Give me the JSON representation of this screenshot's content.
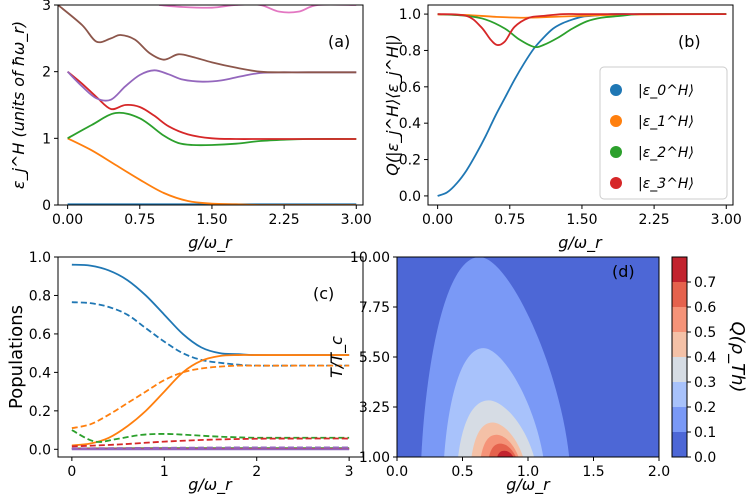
{
  "chart_data": [
    {
      "panel": "a",
      "type": "line",
      "tag": "(a)",
      "xlabel": "g/ω_r",
      "ylabel": "ε_j^H (units of ħω_r)",
      "xlim": [
        -0.1,
        3.07
      ],
      "ylim": [
        0,
        3
      ],
      "xticks": [
        "0.00",
        "0.75",
        "1.50",
        "2.25",
        "3.00"
      ],
      "xtick_values": [
        0,
        0.75,
        1.5,
        2.25,
        3.0
      ],
      "yticks": [
        "0",
        "1",
        "2",
        "3"
      ],
      "ytick_values": [
        0,
        1,
        2,
        3
      ],
      "series": [
        {
          "name": "blue",
          "color": "#1f77b4",
          "x": [
            0,
            3
          ],
          "y": [
            0.01,
            0.01
          ]
        },
        {
          "name": "orange",
          "color": "#ff7f0e",
          "x": [
            0,
            0.25,
            0.5,
            0.75,
            1.0,
            1.25,
            1.5,
            1.75,
            2.0,
            2.5,
            3.0
          ],
          "y": [
            1.0,
            0.82,
            0.6,
            0.38,
            0.18,
            0.06,
            0.02,
            0.01,
            0.0,
            0.0,
            0.0
          ]
        },
        {
          "name": "green",
          "color": "#2ca02c",
          "x": [
            0,
            0.25,
            0.5,
            0.75,
            1.0,
            1.15,
            1.3,
            1.5,
            1.75,
            2.0,
            2.25,
            2.5,
            3.0
          ],
          "y": [
            1.0,
            1.2,
            1.38,
            1.3,
            1.04,
            0.93,
            0.9,
            0.9,
            0.92,
            0.96,
            0.98,
            0.99,
            0.99
          ]
        },
        {
          "name": "red",
          "color": "#d62728",
          "x": [
            0,
            0.15,
            0.3,
            0.45,
            0.6,
            0.75,
            0.9,
            1.05,
            1.25,
            1.5,
            1.75,
            2.0,
            2.25,
            2.5,
            3.0
          ],
          "y": [
            2.0,
            1.82,
            1.62,
            1.44,
            1.5,
            1.47,
            1.34,
            1.18,
            1.06,
            1.0,
            0.99,
            0.99,
            0.99,
            0.99,
            0.99
          ]
        },
        {
          "name": "purple",
          "color": "#9467bd",
          "x": [
            0,
            0.15,
            0.3,
            0.45,
            0.6,
            0.75,
            0.9,
            1.05,
            1.2,
            1.4,
            1.6,
            1.8,
            2.0,
            2.25,
            2.5,
            3.0
          ],
          "y": [
            2.0,
            1.78,
            1.6,
            1.58,
            1.78,
            1.95,
            2.02,
            1.96,
            1.88,
            1.85,
            1.87,
            1.93,
            1.98,
            1.99,
            1.99,
            1.99
          ]
        },
        {
          "name": "brown",
          "color": "#8c564b",
          "x": [
            -0.1,
            0.15,
            0.3,
            0.45,
            0.55,
            0.7,
            0.85,
            1.0,
            1.15,
            1.3,
            1.5,
            1.75,
            2.0,
            2.25,
            2.5,
            3.0
          ],
          "y": [
            3.0,
            2.7,
            2.45,
            2.5,
            2.55,
            2.48,
            2.28,
            2.18,
            2.26,
            2.22,
            2.14,
            2.06,
            2.0,
            1.99,
            1.99,
            1.99
          ]
        },
        {
          "name": "pink",
          "color": "#e377c2",
          "x": [
            0.95,
            1.2,
            1.5,
            1.75,
            2.0,
            2.2,
            2.4,
            2.6,
            3.0
          ],
          "y": [
            3.0,
            2.97,
            2.96,
            3.0,
            3.0,
            2.9,
            2.9,
            3.0,
            3.0
          ]
        }
      ]
    },
    {
      "panel": "b",
      "type": "line",
      "tag": "(b)",
      "xlabel": "g/ω_r",
      "ylabel": "Q(|ε_j^H⟩⟨ε_j^H|)",
      "xlim": [
        -0.1,
        3.07
      ],
      "ylim": [
        -0.05,
        1.05
      ],
      "xticks": [
        "0.00",
        "0.75",
        "1.50",
        "2.25",
        "3.00"
      ],
      "xtick_values": [
        0,
        0.75,
        1.5,
        2.25,
        3.0
      ],
      "yticks": [
        "0.0",
        "0.2",
        "0.4",
        "0.6",
        "0.8",
        "1.0"
      ],
      "ytick_values": [
        0,
        0.2,
        0.4,
        0.6,
        0.8,
        1.0
      ],
      "legend": [
        "|ε_0^H⟩",
        "|ε_1^H⟩",
        "|ε_2^H⟩",
        "|ε_3^H⟩"
      ],
      "legend_position": "center-right",
      "series": [
        {
          "name": "|ε0⟩",
          "color": "#1f77b4",
          "x": [
            0,
            0.1,
            0.2,
            0.3,
            0.4,
            0.5,
            0.6,
            0.7,
            0.8,
            0.9,
            1.0,
            1.1,
            1.2,
            1.3,
            1.4,
            1.5,
            1.6,
            1.7,
            1.8,
            2.0,
            2.2,
            2.5,
            3.0
          ],
          "y": [
            0.0,
            0.02,
            0.07,
            0.14,
            0.23,
            0.33,
            0.44,
            0.54,
            0.64,
            0.73,
            0.81,
            0.87,
            0.92,
            0.95,
            0.97,
            0.985,
            0.99,
            0.995,
            1.0,
            1.0,
            1.0,
            1.0,
            1.0
          ]
        },
        {
          "name": "|ε1⟩",
          "color": "#ff7f0e",
          "x": [
            0,
            0.3,
            0.6,
            0.9,
            1.2,
            1.5,
            2.0,
            3.0
          ],
          "y": [
            0.998,
            0.995,
            0.985,
            0.98,
            0.985,
            0.99,
            0.998,
            1.0
          ]
        },
        {
          "name": "|ε2⟩",
          "color": "#2ca02c",
          "x": [
            0,
            0.3,
            0.5,
            0.7,
            0.85,
            1.0,
            1.1,
            1.25,
            1.4,
            1.55,
            1.7,
            1.9,
            2.1,
            2.5,
            3.0
          ],
          "y": [
            1.0,
            0.99,
            0.97,
            0.92,
            0.86,
            0.82,
            0.83,
            0.87,
            0.92,
            0.96,
            0.98,
            0.99,
            1.0,
            1.0,
            1.0
          ]
        },
        {
          "name": "|ε3⟩",
          "color": "#d62728",
          "x": [
            0,
            0.3,
            0.45,
            0.55,
            0.62,
            0.7,
            0.8,
            0.95,
            1.1,
            1.3,
            1.5,
            2.0,
            3.0
          ],
          "y": [
            1.0,
            0.99,
            0.93,
            0.86,
            0.83,
            0.85,
            0.93,
            0.98,
            0.99,
            1.0,
            1.0,
            1.0,
            1.0
          ]
        }
      ]
    },
    {
      "panel": "c",
      "type": "line",
      "tag": "(c)",
      "xlabel": "g/ω_r",
      "ylabel": "Populations",
      "xlim": [
        -0.15,
        3.15
      ],
      "ylim": [
        -0.04,
        1.0
      ],
      "xticks": [
        "0",
        "1",
        "2",
        "3"
      ],
      "xtick_values": [
        0,
        1,
        2,
        3
      ],
      "yticks": [
        "0.0",
        "0.2",
        "0.4",
        "0.6",
        "0.8",
        "1.0"
      ],
      "ytick_values": [
        0,
        0.2,
        0.4,
        0.6,
        0.8,
        1.0
      ],
      "series": [
        {
          "name": "blue-solid",
          "color": "#1f77b4",
          "dashed": false,
          "x": [
            0,
            0.2,
            0.4,
            0.6,
            0.8,
            1.0,
            1.2,
            1.4,
            1.6,
            1.8,
            2.0,
            2.5,
            3.0
          ],
          "y": [
            0.96,
            0.955,
            0.93,
            0.88,
            0.8,
            0.7,
            0.6,
            0.53,
            0.5,
            0.495,
            0.49,
            0.49,
            0.49
          ]
        },
        {
          "name": "blue-dashed",
          "color": "#1f77b4",
          "dashed": true,
          "x": [
            0,
            0.2,
            0.4,
            0.6,
            0.8,
            1.0,
            1.2,
            1.4,
            1.6,
            1.8,
            2.0,
            2.5,
            3.0
          ],
          "y": [
            0.765,
            0.76,
            0.74,
            0.7,
            0.63,
            0.56,
            0.5,
            0.465,
            0.45,
            0.44,
            0.435,
            0.435,
            0.435
          ]
        },
        {
          "name": "orange-solid",
          "color": "#ff7f0e",
          "dashed": false,
          "x": [
            0,
            0.2,
            0.4,
            0.6,
            0.8,
            1.0,
            1.2,
            1.4,
            1.6,
            1.8,
            2.0,
            2.5,
            3.0
          ],
          "y": [
            0.02,
            0.03,
            0.06,
            0.12,
            0.2,
            0.3,
            0.4,
            0.46,
            0.485,
            0.49,
            0.49,
            0.49,
            0.49
          ]
        },
        {
          "name": "orange-dashed",
          "color": "#ff7f0e",
          "dashed": true,
          "x": [
            0,
            0.2,
            0.4,
            0.6,
            0.8,
            1.0,
            1.2,
            1.4,
            1.6,
            1.8,
            2.0,
            2.5,
            3.0
          ],
          "y": [
            0.11,
            0.13,
            0.18,
            0.24,
            0.3,
            0.36,
            0.4,
            0.42,
            0.43,
            0.435,
            0.435,
            0.435,
            0.435
          ]
        },
        {
          "name": "green-solid",
          "color": "#2ca02c",
          "dashed": false,
          "x": [
            0,
            0.5,
            1.0,
            1.5,
            2.0,
            3.0
          ],
          "y": [
            0.005,
            0.005,
            0.006,
            0.006,
            0.006,
            0.006
          ]
        },
        {
          "name": "green-dashed",
          "color": "#2ca02c",
          "dashed": true,
          "x": [
            0,
            0.25,
            0.5,
            0.75,
            1.0,
            1.25,
            1.5,
            1.75,
            2.0,
            2.5,
            3.0
          ],
          "y": [
            0.1,
            0.04,
            0.055,
            0.075,
            0.08,
            0.075,
            0.068,
            0.063,
            0.06,
            0.06,
            0.06
          ]
        },
        {
          "name": "red-solid",
          "color": "#d62728",
          "dashed": false,
          "x": [
            0,
            1.0,
            2.0,
            3.0
          ],
          "y": [
            0.003,
            0.003,
            0.003,
            0.003
          ]
        },
        {
          "name": "red-dashed",
          "color": "#d62728",
          "dashed": true,
          "x": [
            0,
            0.5,
            1.0,
            1.5,
            2.0,
            2.5,
            3.0
          ],
          "y": [
            0.015,
            0.025,
            0.04,
            0.05,
            0.055,
            0.056,
            0.056
          ]
        },
        {
          "name": "purple-solid",
          "color": "#9467bd",
          "dashed": false,
          "x": [
            0,
            3.0
          ],
          "y": [
            0.0,
            0.0
          ]
        },
        {
          "name": "purple-dashed",
          "color": "#9467bd",
          "dashed": true,
          "x": [
            0,
            1.0,
            2.0,
            3.0
          ],
          "y": [
            0.005,
            0.008,
            0.01,
            0.01
          ]
        }
      ]
    },
    {
      "panel": "d",
      "type": "heatmap",
      "tag": "(d)",
      "xlabel": "g/ω_r",
      "ylabel": "T/T_c",
      "xlim": [
        0.0,
        2.0
      ],
      "ylim": [
        1.0,
        10.0
      ],
      "xticks": [
        "0.0",
        "0.5",
        "1.0",
        "1.5",
        "2.0"
      ],
      "xtick_values": [
        0.0,
        0.5,
        1.0,
        1.5,
        2.0
      ],
      "yticks": [
        "1.00",
        "3.25",
        "5.50",
        "7.75",
        "10.00"
      ],
      "ytick_values": [
        1.0,
        3.25,
        5.5,
        7.75,
        10.0
      ],
      "colorbar_label": "Q(ρ_Th)",
      "colorbar_ticks": [
        "0.0",
        "0.1",
        "0.2",
        "0.3",
        "0.4",
        "0.5",
        "0.6",
        "0.7"
      ],
      "levels": [
        0.0,
        0.1,
        0.2,
        0.3,
        0.4,
        0.5,
        0.6,
        0.7
      ],
      "level_colors": [
        "#4d67d6",
        "#7a99f6",
        "#a8c2fb",
        "#d6dce4",
        "#f4c1a7",
        "#f59378",
        "#e5624d",
        "#c2232e"
      ],
      "contours": [
        {
          "level": 0.1,
          "apex": [
            0.63,
            10.0
          ],
          "base": [
            0.18,
            1.45
          ]
        },
        {
          "level": 0.2,
          "apex": [
            0.66,
            5.9
          ],
          "base": [
            0.35,
            1.22
          ]
        },
        {
          "level": 0.3,
          "apex": [
            0.7,
            3.55
          ],
          "base": [
            0.45,
            1.07
          ]
        },
        {
          "level": 0.4,
          "apex": [
            0.73,
            2.55
          ],
          "base": [
            0.55,
            1.0
          ]
        },
        {
          "level": 0.5,
          "apex": [
            0.76,
            2.0
          ],
          "base": [
            0.62,
            0.98
          ]
        },
        {
          "level": 0.6,
          "apex": [
            0.79,
            1.6
          ],
          "base": [
            0.68,
            0.94
          ]
        },
        {
          "level": 0.7,
          "apex": [
            0.82,
            1.28
          ],
          "base": [
            0.74,
            0.9
          ]
        }
      ]
    }
  ]
}
